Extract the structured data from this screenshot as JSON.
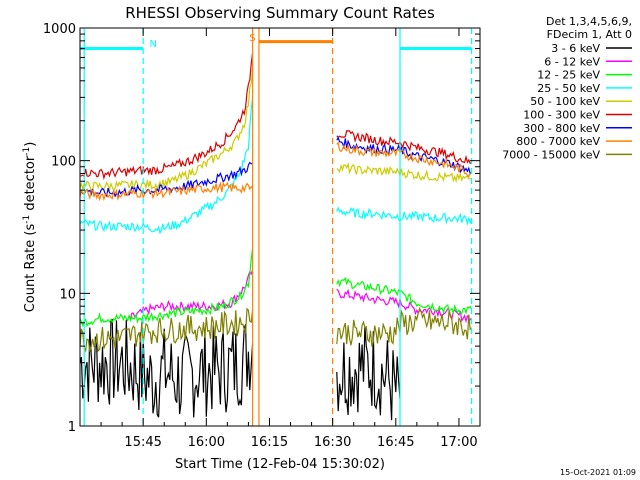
{
  "chart_data": {
    "type": "line",
    "title": "RHESSI Observing Summary Count Rates",
    "xlabel": "Start Time (12-Feb-04 15:30:02)",
    "ylabel_main": "Count Rate (s",
    "ylabel_sup1": "-1",
    "ylabel_mid": " detector",
    "ylabel_sup2": "-1",
    "ylabel_end": ")",
    "yscale": "log",
    "ylim": [
      1,
      1000
    ],
    "xlim_minutes": [
      0,
      95
    ],
    "x_ticks": [
      {
        "min": 15,
        "label": "15:45"
      },
      {
        "min": 30,
        "label": "16:00"
      },
      {
        "min": 45,
        "label": "16:15"
      },
      {
        "min": 60,
        "label": "16:30"
      },
      {
        "min": 75,
        "label": "16:45"
      },
      {
        "min": 90,
        "label": "17:00"
      }
    ],
    "y_ticks": [
      {
        "value": 1,
        "label": "1"
      },
      {
        "value": 10,
        "label": "10"
      },
      {
        "value": 100,
        "label": "100"
      },
      {
        "value": 1000,
        "label": "1000"
      }
    ],
    "legend_header": [
      "Det 1,3,4,5,6,9,",
      "FDecim 1, Att 0"
    ],
    "legend_placement": "right",
    "series": [
      {
        "name": "3 - 6 keV",
        "color": "#000000",
        "segments": [
          [
            [
              0,
              3.0
            ],
            [
              10,
              3.0
            ],
            [
              14,
              2.6
            ],
            [
              17,
              2.2
            ],
            [
              20,
              2.6
            ],
            [
              24,
              2.2
            ],
            [
              28,
              2.6
            ],
            [
              32,
              2.6
            ],
            [
              36,
              2.8
            ],
            [
              39,
              3.2
            ],
            [
              41,
              4.2
            ]
          ],
          [
            [
              61,
              2.6
            ],
            [
              66,
              2.8
            ],
            [
              70,
              2.8
            ],
            [
              73,
              2.3
            ],
            [
              76,
              1.6
            ]
          ]
        ]
      },
      {
        "name": "6 - 12 keV",
        "color": "#ff00ff",
        "segments": [
          [
            [
              12,
              6.5
            ],
            [
              16,
              7.5
            ],
            [
              20,
              8.0
            ],
            [
              24,
              8.0
            ],
            [
              28,
              8.0
            ],
            [
              32,
              8.0
            ],
            [
              36,
              8.5
            ],
            [
              39,
              11
            ],
            [
              41,
              15
            ]
          ],
          [
            [
              61,
              10
            ],
            [
              66,
              9.5
            ],
            [
              70,
              9.0
            ],
            [
              76,
              8.5
            ],
            [
              80,
              7.5
            ],
            [
              84,
              7.5
            ],
            [
              88,
              7.0
            ],
            [
              93,
              6.5
            ]
          ]
        ]
      },
      {
        "name": "12 - 25 keV",
        "color": "#00ff00",
        "segments": [
          [
            [
              0,
              6.0
            ],
            [
              5,
              6.5
            ],
            [
              10,
              6.5
            ],
            [
              14,
              6.5
            ],
            [
              18,
              6.8
            ],
            [
              24,
              7.2
            ],
            [
              30,
              7.5
            ],
            [
              34,
              8.0
            ],
            [
              38,
              9.5
            ],
            [
              40,
              12
            ],
            [
              41,
              22
            ]
          ],
          [
            [
              61,
              12.5
            ],
            [
              66,
              11.5
            ],
            [
              70,
              11
            ],
            [
              76,
              10
            ],
            [
              80,
              8.5
            ],
            [
              84,
              8.0
            ],
            [
              88,
              7.5
            ],
            [
              93,
              7.5
            ]
          ]
        ]
      },
      {
        "name": "25 - 50 keV",
        "color": "#00ffff",
        "segments": [
          [
            [
              0,
              34
            ],
            [
              5,
              32
            ],
            [
              10,
              32
            ],
            [
              14,
              32
            ],
            [
              17,
              31
            ],
            [
              20,
              31
            ],
            [
              24,
              34
            ],
            [
              28,
              40
            ],
            [
              32,
              48
            ],
            [
              35,
              58
            ],
            [
              38,
              80
            ],
            [
              40,
              130
            ],
            [
              41,
              300
            ]
          ],
          [
            [
              61,
              42
            ],
            [
              66,
              40
            ],
            [
              70,
              40
            ],
            [
              76,
              38
            ],
            [
              80,
              38
            ],
            [
              84,
              37
            ],
            [
              88,
              37
            ],
            [
              93,
              36
            ]
          ]
        ]
      },
      {
        "name": "50 - 100 keV",
        "color": "#cccc00",
        "segments": [
          [
            [
              0,
              65
            ],
            [
              5,
              64
            ],
            [
              10,
              65
            ],
            [
              14,
              66
            ],
            [
              18,
              66
            ],
            [
              22,
              70
            ],
            [
              26,
              80
            ],
            [
              30,
              95
            ],
            [
              34,
              115
            ],
            [
              37,
              140
            ],
            [
              39,
              190
            ],
            [
              40,
              270
            ],
            [
              41,
              500
            ]
          ],
          [
            [
              61,
              90
            ],
            [
              66,
              85
            ],
            [
              70,
              84
            ],
            [
              76,
              82
            ],
            [
              80,
              78
            ],
            [
              84,
              76
            ],
            [
              88,
              74
            ],
            [
              93,
              73
            ]
          ]
        ]
      },
      {
        "name": "100 - 300 keV",
        "color": "#dd0000",
        "segments": [
          [
            [
              0,
              82
            ],
            [
              5,
              80
            ],
            [
              10,
              82
            ],
            [
              14,
              84
            ],
            [
              18,
              85
            ],
            [
              22,
              90
            ],
            [
              26,
              100
            ],
            [
              30,
              115
            ],
            [
              34,
              140
            ],
            [
              37,
              180
            ],
            [
              39,
              240
            ],
            [
              40,
              350
            ],
            [
              41,
              650
            ]
          ],
          [
            [
              61,
              162
            ],
            [
              64,
              155
            ],
            [
              68,
              148
            ],
            [
              72,
              140
            ],
            [
              76,
              138
            ],
            [
              80,
              125
            ],
            [
              84,
              118
            ],
            [
              88,
              110
            ],
            [
              93,
              96
            ]
          ]
        ]
      },
      {
        "name": "300 - 800 keV",
        "color": "#0000ff",
        "segments": [
          [
            [
              0,
              60
            ],
            [
              5,
              57
            ],
            [
              10,
              58
            ],
            [
              14,
              60
            ],
            [
              18,
              60
            ],
            [
              22,
              62
            ],
            [
              26,
              65
            ],
            [
              30,
              70
            ],
            [
              34,
              75
            ],
            [
              37,
              80
            ],
            [
              39,
              85
            ],
            [
              41,
              95
            ]
          ],
          [
            [
              61,
              143
            ],
            [
              64,
              132
            ],
            [
              68,
              125
            ],
            [
              72,
              122
            ],
            [
              76,
              120
            ],
            [
              80,
              108
            ],
            [
              84,
              102
            ],
            [
              88,
              95
            ],
            [
              93,
              82
            ]
          ]
        ]
      },
      {
        "name": "800 - 7000 keV",
        "color": "#ff8000",
        "segments": [
          [
            [
              0,
              57
            ],
            [
              5,
              55
            ],
            [
              10,
              56
            ],
            [
              14,
              57
            ],
            [
              18,
              57
            ],
            [
              22,
              58
            ],
            [
              26,
              60
            ],
            [
              30,
              62
            ],
            [
              34,
              63
            ],
            [
              37,
              62
            ],
            [
              40,
              62
            ],
            [
              41,
              62
            ]
          ],
          [
            [
              61,
              130
            ],
            [
              64,
              122
            ],
            [
              68,
              117
            ],
            [
              72,
              114
            ],
            [
              76,
              113
            ],
            [
              80,
              105
            ],
            [
              84,
              99
            ],
            [
              88,
              92
            ],
            [
              93,
              80
            ]
          ]
        ]
      },
      {
        "name": "7000 - 15000 keV",
        "color": "#808000",
        "segments": [
          [
            [
              0,
              4.6
            ],
            [
              5,
              4.5
            ],
            [
              10,
              4.6
            ],
            [
              14,
              5.0
            ],
            [
              18,
              5.3
            ],
            [
              22,
              5.3
            ],
            [
              26,
              5.5
            ],
            [
              30,
              5.5
            ],
            [
              34,
              5.8
            ],
            [
              38,
              6.0
            ],
            [
              40,
              6.5
            ],
            [
              41,
              7.5
            ]
          ],
          [
            [
              61,
              5.2
            ],
            [
              66,
              5.0
            ],
            [
              70,
              5.0
            ],
            [
              74,
              5.0
            ],
            [
              76,
              5.8
            ],
            [
              80,
              6.2
            ],
            [
              84,
              6.0
            ],
            [
              88,
              6.0
            ],
            [
              93,
              5.5
            ]
          ]
        ]
      }
    ],
    "markers": [
      {
        "type": "bar",
        "color": "#00ffff",
        "x0": 0,
        "x1": 15,
        "y": 700
      },
      {
        "type": "bar",
        "color": "#00ffff",
        "x0": 76,
        "x1": 93,
        "y": 700
      },
      {
        "type": "bar",
        "color": "#ff8000",
        "x0": 42.5,
        "x1": 60,
        "y": 790
      },
      {
        "type": "vsolid",
        "color": "#00ffff",
        "x": 1
      },
      {
        "type": "vdash",
        "color": "#00ffff",
        "x": 15
      },
      {
        "type": "vsolid",
        "color": "#00ffff",
        "x": 76
      },
      {
        "type": "vdash",
        "color": "#00ffff",
        "x": 93
      },
      {
        "type": "vsolid",
        "color": "#ff8000",
        "x": 41
      },
      {
        "type": "vsolid",
        "color": "#ff8000",
        "x": 42.5
      },
      {
        "type": "vdash",
        "color": "#ff8000",
        "x": 60
      }
    ],
    "annotations": [
      {
        "text": "N",
        "color": "#00ffff",
        "x": 16.5,
        "y": 720
      },
      {
        "text": "S",
        "color": "#ff8000",
        "x": 40.2,
        "y": 800
      }
    ],
    "footer_timestamp": "15-Oct-2021 01:09"
  }
}
